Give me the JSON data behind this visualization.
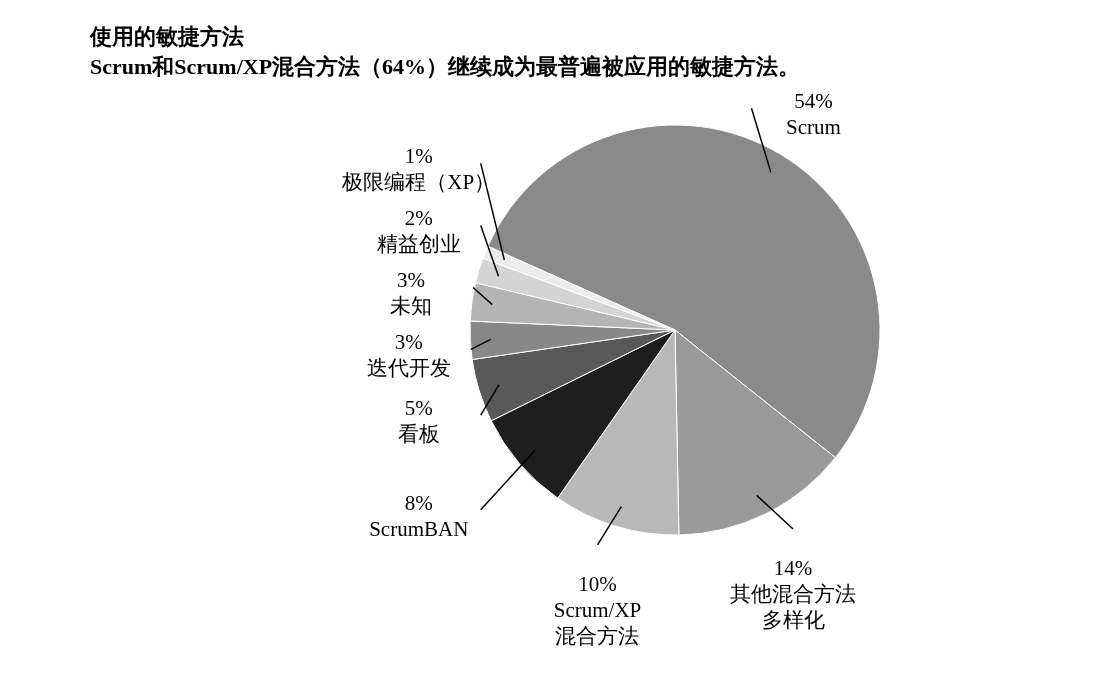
{
  "chart_data": {
    "type": "pie",
    "title": "使用的敏捷方法",
    "subtitle": "Scrum和Scrum/XP混合方法（64%）继续成为最普遍被应用的敏捷方法。",
    "categories": [
      "Scrum",
      "其他混合方法多样化",
      "Scrum/XP混合方法",
      "ScrumBAN",
      "看板",
      "迭代开发",
      "未知",
      "精益创业",
      "极限编程（XP）"
    ],
    "values": [
      54,
      14,
      10,
      8,
      5,
      3,
      3,
      2,
      1
    ],
    "value_labels": [
      "54%",
      "14%",
      "10%",
      "8%",
      "5%",
      "3%",
      "3%",
      "2%",
      "1%"
    ],
    "colors": [
      "#8a8a8a",
      "#9a9a9a",
      "#b8b8b8",
      "#1e1e1e",
      "#585858",
      "#888888",
      "#b4b4b4",
      "#d4d4d4",
      "#ececec"
    ]
  }
}
